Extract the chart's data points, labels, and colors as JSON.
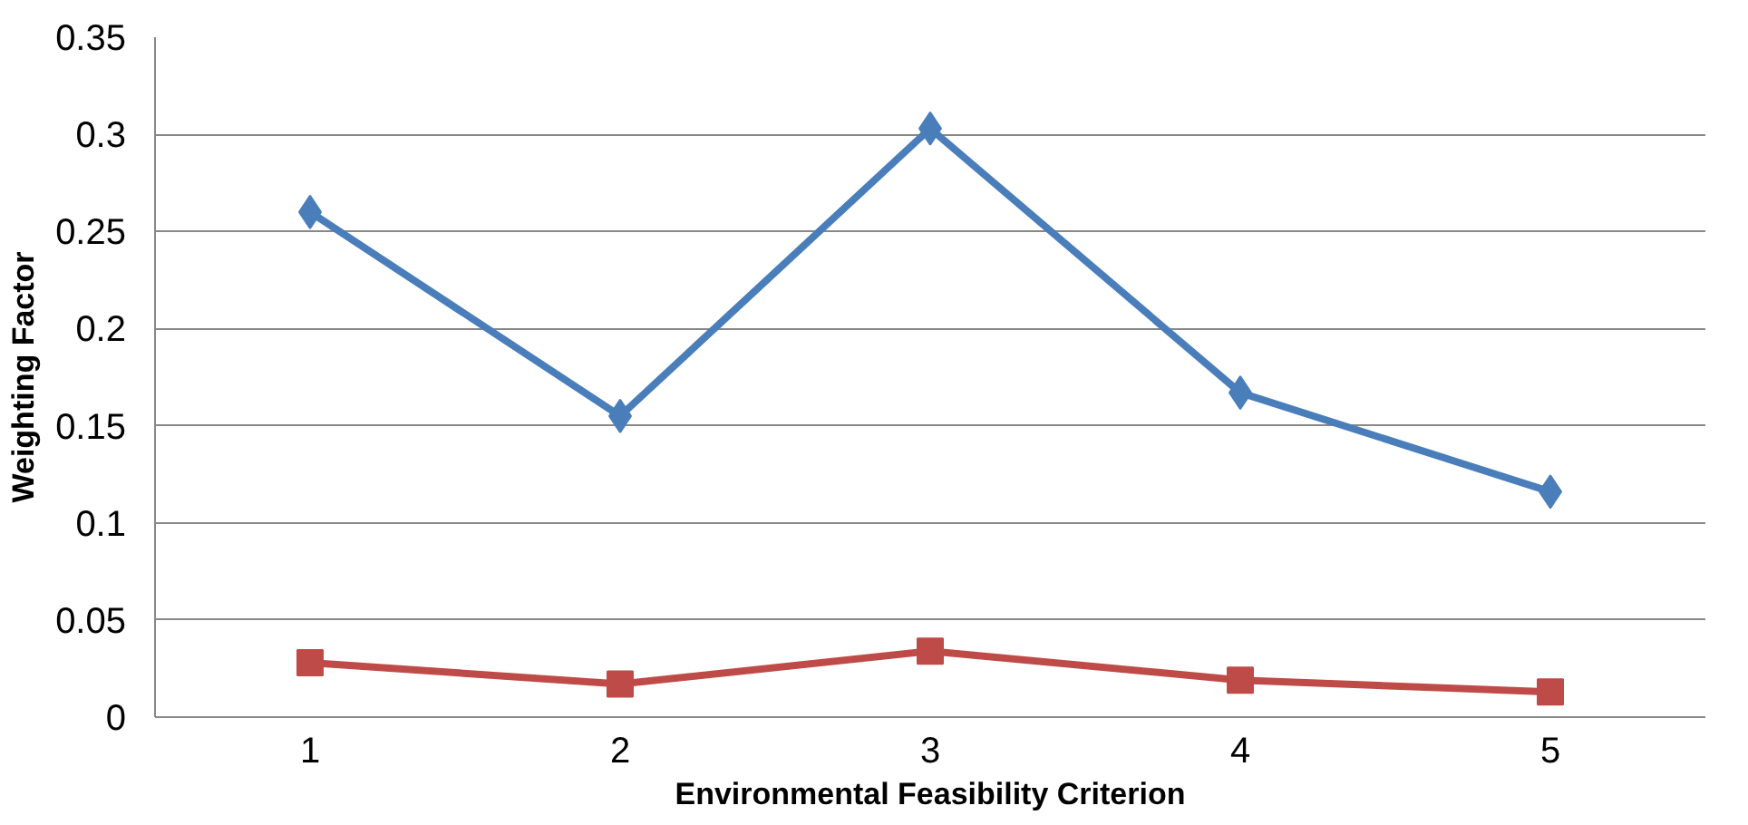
{
  "chart_data": {
    "type": "line",
    "xlabel": "Environmental Feasibility Criterion",
    "ylabel": "Weighting Factor",
    "categories": [
      "1",
      "2",
      "3",
      "4",
      "5"
    ],
    "series": [
      {
        "color": "#4a7ebb",
        "marker": "diamond",
        "values": [
          0.26,
          0.155,
          0.303,
          0.167,
          0.116
        ]
      },
      {
        "color": "#be4b48",
        "marker": "square",
        "values": [
          0.028,
          0.017,
          0.034,
          0.019,
          0.013
        ]
      }
    ],
    "ylim": [
      0,
      0.35
    ],
    "yticks": [
      0,
      0.05,
      0.1,
      0.15,
      0.2,
      0.25,
      0.3,
      0.35
    ],
    "grid": "y",
    "line_style": "solid"
  }
}
